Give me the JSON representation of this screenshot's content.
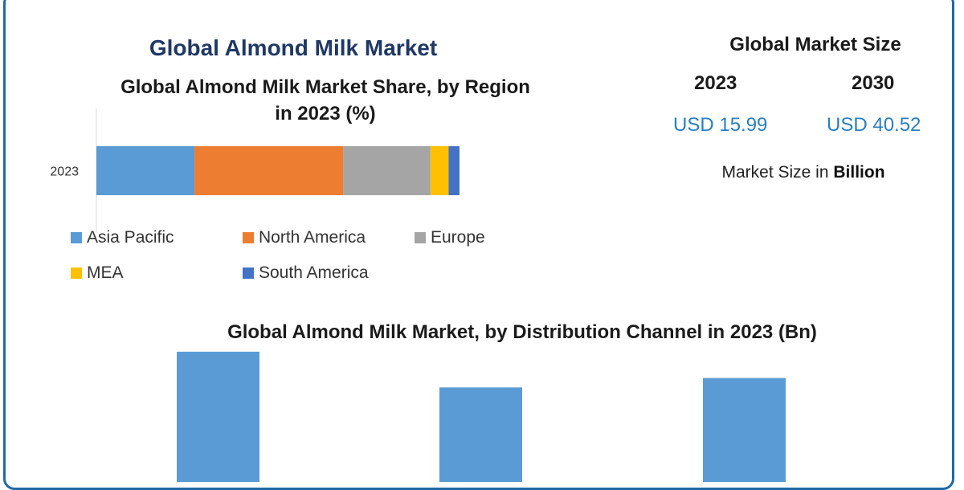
{
  "main_title": "Global Almond Milk Market",
  "market_size": {
    "title": "Global Market Size",
    "year_start": "2023",
    "year_end": "2030",
    "value_start": "USD 15.99",
    "value_end": "USD 40.52",
    "unit_prefix": "Market Size in ",
    "unit_bold": "Billion"
  },
  "chart_data": [
    {
      "type": "bar",
      "orientation": "horizontal-stacked",
      "title": "Global Almond Milk Market Share, by Region",
      "title_line2": "in 2023 (%)",
      "categories": [
        "2023"
      ],
      "series": [
        {
          "name": "Asia Pacific",
          "values": [
            27
          ],
          "color": "#5b9bd5"
        },
        {
          "name": "North America",
          "values": [
            41
          ],
          "color": "#ed7d31"
        },
        {
          "name": "Europe",
          "values": [
            24
          ],
          "color": "#a5a5a5"
        },
        {
          "name": "MEA",
          "values": [
            5
          ],
          "color": "#ffc000"
        },
        {
          "name": "South America",
          "values": [
            3
          ],
          "color": "#4472c4"
        }
      ],
      "xlim": [
        0,
        100
      ],
      "legend": "bottom",
      "grid": false
    },
    {
      "type": "bar",
      "title": "Global Almond Milk Market, by Distribution Channel  in 2023 (Bn)",
      "values": [
        6.2,
        4.5,
        4.95
      ],
      "color": "#5b9bd5",
      "ylim": [
        0,
        6.5
      ],
      "grid": false
    }
  ]
}
